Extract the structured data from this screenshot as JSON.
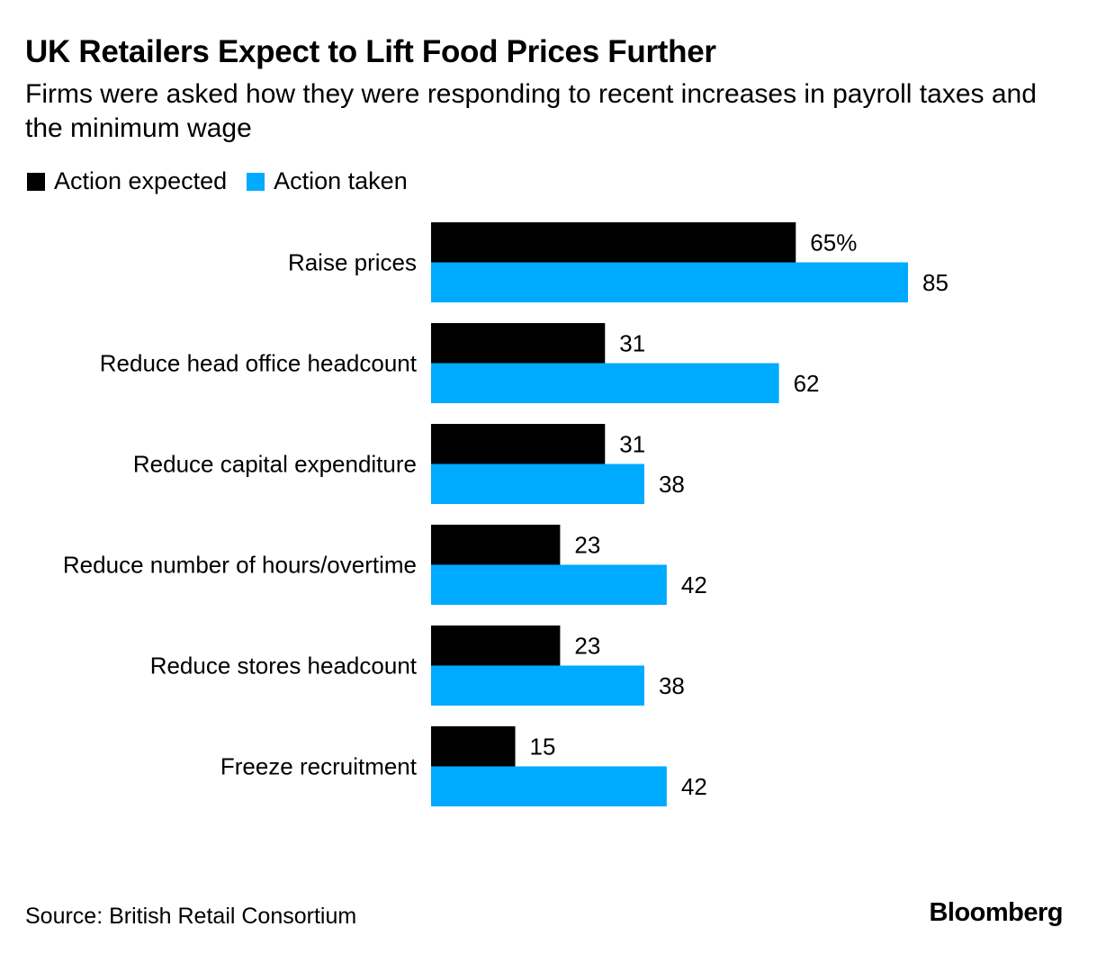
{
  "title": "UK Retailers Expect to Lift Food Prices Further",
  "subtitle": "Firms were asked how they were responding to recent increases in payroll taxes and the minimum wage",
  "legend": {
    "items": [
      {
        "label": "Action expected",
        "color": "#000000"
      },
      {
        "label": "Action taken",
        "color": "#00aaff"
      }
    ]
  },
  "source": "Source: British Retail Consortium",
  "brand": "Bloomberg",
  "chart_data": {
    "type": "bar",
    "orientation": "horizontal",
    "unit": "%",
    "categories": [
      "Raise prices",
      "Reduce head office headcount",
      "Reduce capital expenditure",
      "Reduce number of hours/overtime",
      "Reduce stores headcount",
      "Freeze recruitment"
    ],
    "series": [
      {
        "name": "Action expected",
        "color": "#000000",
        "values": [
          65,
          31,
          31,
          23,
          23,
          15
        ],
        "labels": [
          "65%",
          "31",
          "31",
          "23",
          "23",
          "15"
        ]
      },
      {
        "name": "Action taken",
        "color": "#00aaff",
        "values": [
          85,
          62,
          38,
          42,
          38,
          42
        ],
        "labels": [
          "85",
          "62",
          "38",
          "42",
          "38",
          "42"
        ]
      }
    ],
    "xlim": [
      0,
      100
    ],
    "grid": false,
    "legend_position": "top-left"
  }
}
